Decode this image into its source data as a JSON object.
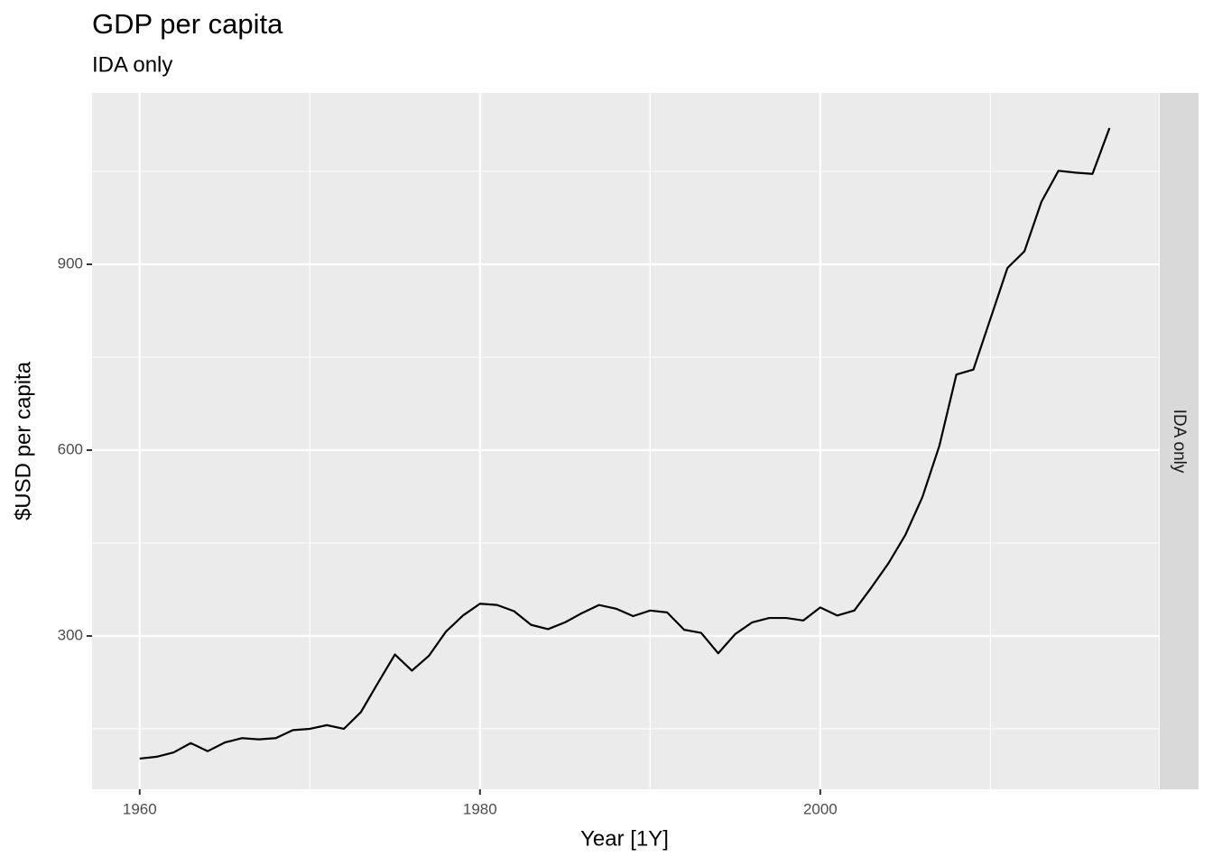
{
  "chart_data": {
    "type": "line",
    "title": "GDP per capita",
    "subtitle": "IDA only",
    "facet_label": "IDA only",
    "xlabel": "Year [1Y]",
    "ylabel": "$USD per capita",
    "x": [
      1960,
      1961,
      1962,
      1963,
      1964,
      1965,
      1966,
      1967,
      1968,
      1969,
      1970,
      1971,
      1972,
      1973,
      1974,
      1975,
      1976,
      1977,
      1978,
      1979,
      1980,
      1981,
      1982,
      1983,
      1984,
      1985,
      1986,
      1987,
      1988,
      1989,
      1990,
      1991,
      1992,
      1993,
      1994,
      1995,
      1996,
      1997,
      1998,
      1999,
      2000,
      2001,
      2002,
      2003,
      2004,
      2005,
      2006,
      2007,
      2008,
      2009,
      2010,
      2011,
      2012,
      2013,
      2014,
      2015,
      2016,
      2017
    ],
    "series": [
      {
        "name": "GDP",
        "color": "#000000",
        "values": [
          102,
          105,
          112,
          127,
          114,
          128,
          135,
          133,
          135,
          148,
          150,
          156,
          150,
          177,
          224,
          270,
          244,
          268,
          307,
          333,
          352,
          350,
          340,
          318,
          311,
          322,
          337,
          350,
          344,
          332,
          341,
          338,
          310,
          305,
          272,
          303,
          322,
          329,
          329,
          325,
          346,
          333,
          341,
          378,
          417,
          463,
          524,
          607,
          722,
          730,
          812,
          894,
          921,
          1001,
          1051,
          1048,
          1046,
          1120
        ]
      }
    ],
    "xlim": [
      1957.2,
      2019.9
    ],
    "xticks": [
      1960,
      1980,
      2000
    ],
    "xminorticks": [
      1970,
      1990,
      2010
    ],
    "ylim": [
      52.4,
      1176.7
    ],
    "yticks": [
      300,
      600,
      900
    ],
    "yminorticks": [
      150,
      450,
      750,
      1050
    ],
    "grid": true
  }
}
